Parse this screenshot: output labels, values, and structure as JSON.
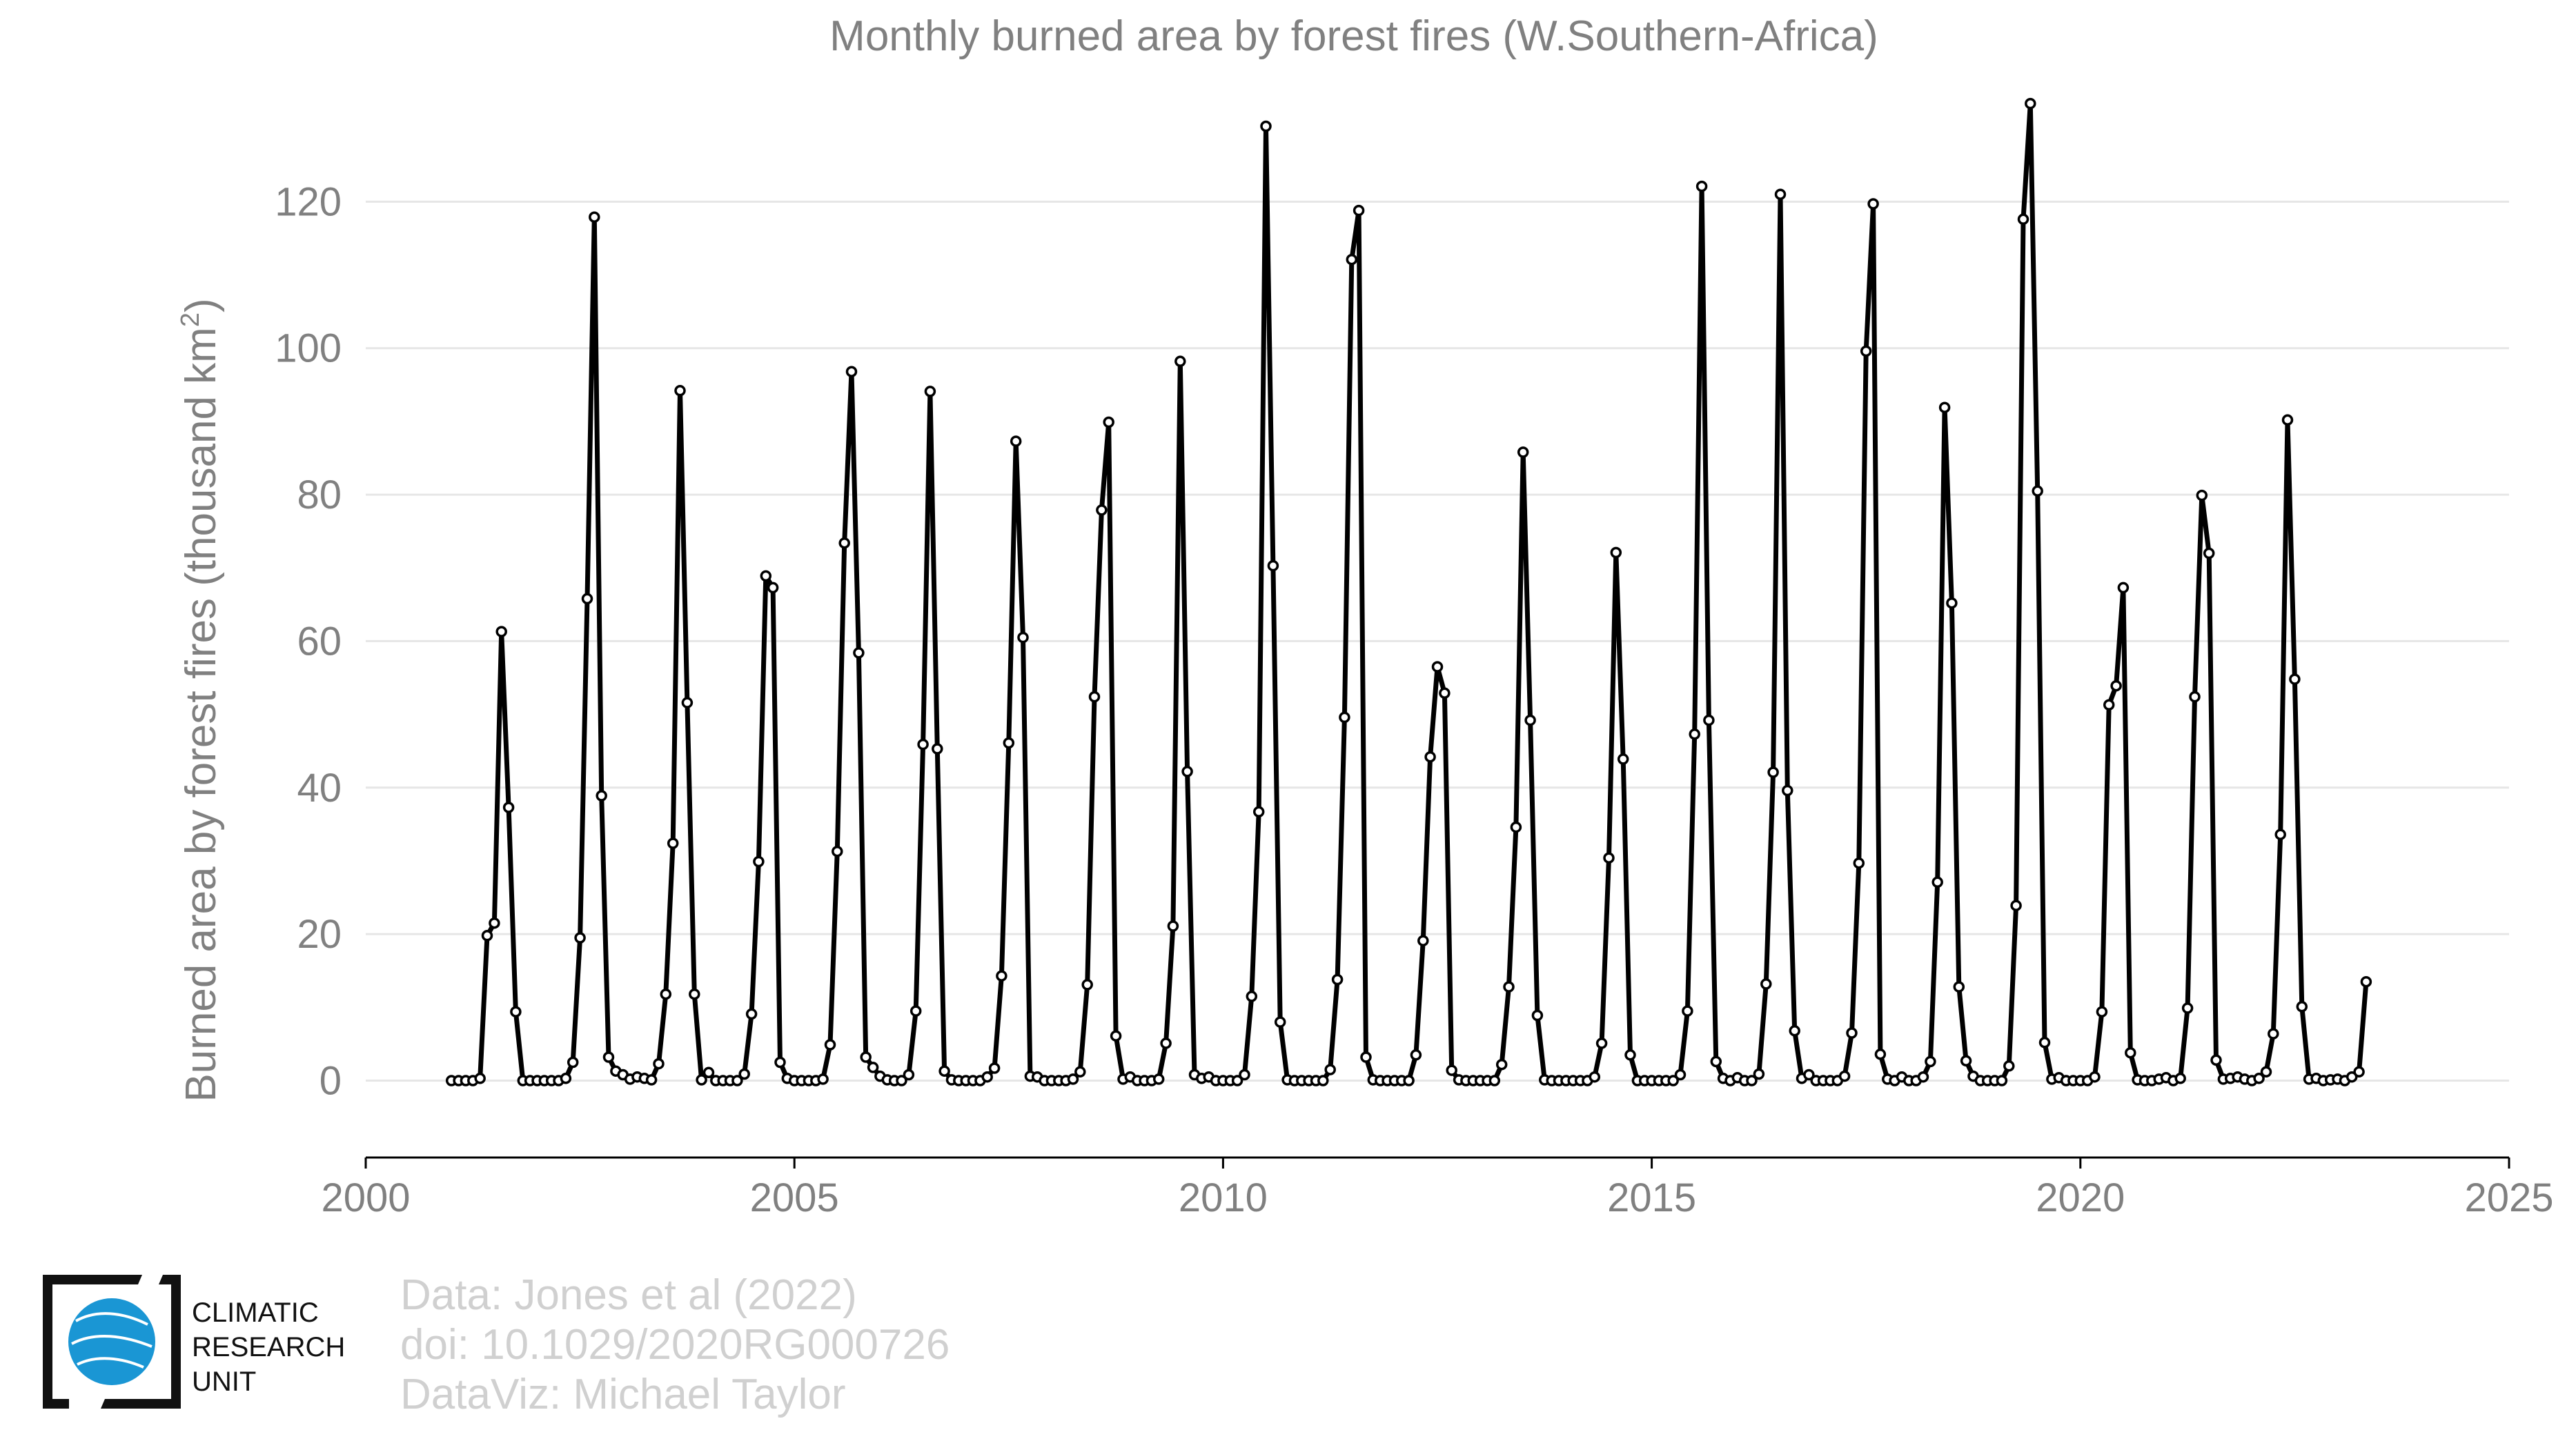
{
  "chart_data": {
    "type": "line",
    "title": "Monthly burned area by forest fires (W.Southern-Africa)",
    "ylabel": "Burned area by forest fires (thousand km",
    "ylabel_sup": "2",
    "ylabel_close": ")",
    "xlabel": "",
    "xlim": [
      2000,
      2025
    ],
    "ylim": [
      -10.5,
      140
    ],
    "x_ticks": [
      2000,
      2005,
      2010,
      2015,
      2020,
      2025
    ],
    "y_ticks": [
      0,
      20,
      40,
      60,
      80,
      100,
      120
    ],
    "grid": true,
    "legend": "none",
    "series": [
      {
        "start": "2001-01",
        "frequency": "monthly",
        "color": "#000000",
        "marker": "circle-open",
        "values": [
          0,
          0,
          0,
          0,
          0.3,
          19.8,
          21.5,
          61.3,
          37.3,
          9.4,
          0,
          0,
          0,
          0,
          0,
          0,
          0.3,
          2.5,
          19.5,
          65.8,
          117.9,
          38.9,
          3.2,
          1.3,
          0.8,
          0.2,
          0.5,
          0.3,
          0.1,
          2.3,
          11.8,
          32.4,
          94.2,
          51.6,
          11.8,
          0.1,
          1.1,
          0,
          0,
          0,
          0,
          0.9,
          9.1,
          29.9,
          68.9,
          67.3,
          2.5,
          0.3,
          0,
          0,
          0,
          0,
          0.2,
          4.9,
          31.3,
          73.4,
          96.8,
          58.4,
          3.2,
          1.8,
          0.6,
          0.1,
          0,
          0,
          0.8,
          9.5,
          45.9,
          94.1,
          45.3,
          1.3,
          0.1,
          0,
          0,
          0,
          0,
          0.5,
          1.7,
          14.3,
          46.1,
          87.3,
          60.5,
          0.6,
          0.5,
          0,
          0,
          0,
          0,
          0.2,
          1.2,
          13.1,
          52.4,
          77.9,
          89.9,
          6.1,
          0.2,
          0.5,
          0,
          0,
          0,
          0.2,
          5.1,
          21.1,
          98.2,
          42.2,
          0.8,
          0.3,
          0.5,
          0,
          0,
          0,
          0,
          0.8,
          11.5,
          36.7,
          130.3,
          70.3,
          8,
          0.1,
          0,
          0,
          0,
          0,
          0,
          1.5,
          13.8,
          49.6,
          112.1,
          118.8,
          3.2,
          0.1,
          0,
          0,
          0,
          0,
          0,
          3.5,
          19.1,
          44.2,
          56.5,
          52.9,
          1.4,
          0.1,
          0,
          0,
          0,
          0,
          0,
          2.2,
          12.8,
          34.6,
          85.8,
          49.2,
          8.9,
          0.1,
          0,
          0,
          0,
          0,
          0,
          0,
          0.5,
          5.1,
          30.4,
          72.1,
          43.9,
          3.5,
          0,
          0,
          0,
          0,
          0,
          0,
          0.8,
          9.5,
          47.3,
          122.1,
          49.2,
          2.6,
          0.3,
          0,
          0.4,
          0,
          0,
          0.9,
          13.2,
          42.1,
          121,
          39.6,
          6.8,
          0.3,
          0.8,
          0,
          0,
          0,
          0,
          0.6,
          6.5,
          29.7,
          99.6,
          119.7,
          3.6,
          0.2,
          0,
          0.5,
          0,
          0,
          0.5,
          2.6,
          27.1,
          91.9,
          65.2,
          12.8,
          2.7,
          0.6,
          0,
          0,
          0,
          0,
          2,
          23.9,
          117.6,
          133.4,
          80.5,
          5.2,
          0.2,
          0.4,
          0,
          0,
          0,
          0,
          0.5,
          9.4,
          51.3,
          53.9,
          67.3,
          3.8,
          0.1,
          0,
          0,
          0.2,
          0.4,
          0,
          0.3,
          9.9,
          52.4,
          79.9,
          72,
          2.8,
          0.2,
          0.3,
          0.5,
          0.2,
          0,
          0.3,
          1.2,
          6.4,
          33.6,
          90.2,
          54.8,
          10.1,
          0.2,
          0.3,
          0,
          0.1,
          0.2,
          0,
          0.5,
          1.2,
          13.5
        ]
      }
    ],
    "colors": {
      "grid": "#e6e6e6",
      "axis": "#000000",
      "tick_text": "#808080",
      "title_text": "#808080",
      "credit_text": "#d0d0d0",
      "logo_blue": "#1a96d4"
    }
  },
  "credits": {
    "line1": "Data: Jones et al (2022)",
    "line2": "doi: 10.1029/2020RG000726",
    "line3": "DataViz: Michael Taylor"
  },
  "logo": {
    "line1": "CLIMATIC",
    "line2": "RESEARCH",
    "line3": "UNIT",
    "icon": "globe-icon"
  }
}
